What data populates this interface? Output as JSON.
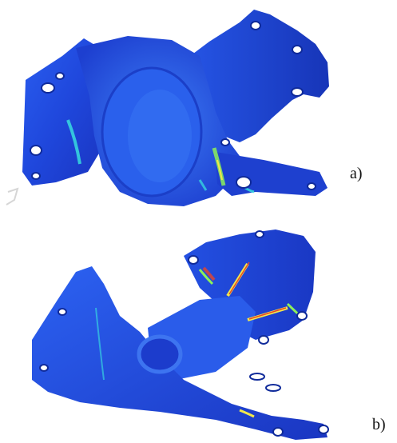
{
  "figure": {
    "panels": [
      {
        "id": "a",
        "label": "a)"
      },
      {
        "id": "b",
        "label": "b)"
      }
    ],
    "colors": {
      "surface_low": "#1a3fd6",
      "surface_mid": "#2f6cf0",
      "highlight_cyan": "#39e6e0",
      "highlight_green": "#8cf05a",
      "highlight_yellow": "#f2e84b",
      "highlight_red": "#e8452a",
      "hole_fill": "#ffffff"
    }
  }
}
